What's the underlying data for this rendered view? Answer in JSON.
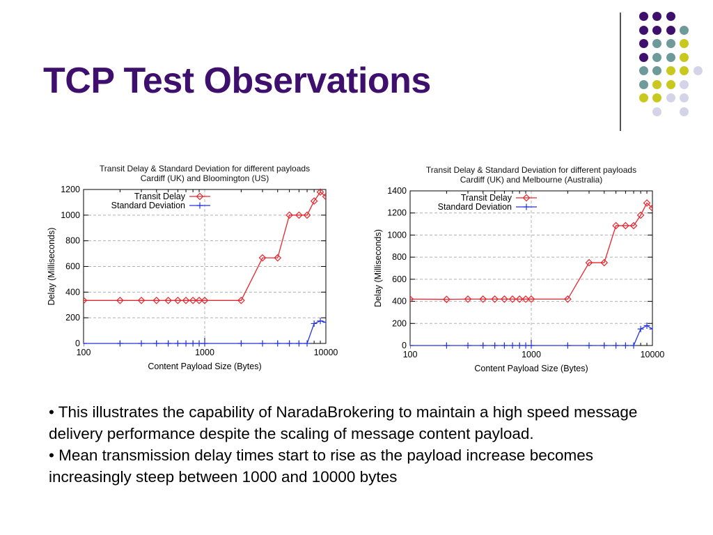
{
  "slide": {
    "title": "TCP Test Observations"
  },
  "decor": {
    "dot_colors": {
      "purple": "#3f0f6e",
      "teal": "#6f9a9a",
      "yellow": "#c8c81e",
      "lavender": "#d4d4e8"
    },
    "dot_grid": [
      [
        "",
        "purple",
        "purple",
        "purple",
        ""
      ],
      [
        "",
        "purple",
        "purple",
        "purple",
        "teal"
      ],
      [
        "",
        "purple",
        "teal",
        "teal",
        "yellow"
      ],
      [
        "",
        "purple",
        "teal",
        "teal",
        "yellow"
      ],
      [
        "",
        "teal",
        "teal",
        "yellow",
        "yellow",
        "lavender"
      ],
      [
        "",
        "teal",
        "yellow",
        "yellow",
        "lavender"
      ],
      [
        "",
        "yellow",
        "yellow",
        "lavender",
        "lavender"
      ],
      [
        "",
        "",
        "lavender",
        "",
        "lavender"
      ]
    ]
  },
  "bullets": [
    "• This illustrates the capability of NaradaBrokering to maintain a high speed message delivery performance despite the scaling of message content payload.",
    "• Mean transmission delay times start to rise as the payload increase becomes increasingly steep between 1000 and 10000 bytes"
  ],
  "chart_data": [
    {
      "type": "line",
      "title": "Transit Delay & Standard Deviation for different payloads",
      "subtitle": "Cardiff (UK) and Bloomington (US)",
      "xlabel": "Content Payload Size (Bytes)",
      "ylabel": "Delay (Milliseconds)",
      "x_scale": "log",
      "xlim": [
        100,
        10000
      ],
      "ylim": [
        0,
        1200
      ],
      "xticks": [
        100,
        1000,
        10000
      ],
      "xtick_labels": [
        "100",
        "1000",
        "10000"
      ],
      "yticks": [
        0,
        200,
        400,
        600,
        800,
        1000,
        1200
      ],
      "grid": true,
      "legend_position": "top-left",
      "x": [
        100,
        200,
        300,
        400,
        500,
        600,
        700,
        800,
        900,
        1000,
        2000,
        3000,
        4000,
        5000,
        6000,
        7000,
        8000,
        9000,
        10000
      ],
      "series": [
        {
          "name": "Transit Delay",
          "color": "#e8242c",
          "marker": "diamond",
          "values": [
            335,
            335,
            335,
            335,
            335,
            335,
            335,
            335,
            335,
            335,
            335,
            667,
            667,
            1000,
            1000,
            1000,
            1110,
            1180,
            1145
          ]
        },
        {
          "name": "Standard Deviation",
          "color": "#2233dd",
          "marker": "plus",
          "values": [
            0,
            0,
            0,
            0,
            0,
            0,
            0,
            0,
            0,
            0,
            0,
            0,
            0,
            0,
            0,
            0,
            155,
            175,
            165
          ]
        }
      ]
    },
    {
      "type": "line",
      "title": "Transit Delay & Standard Deviation for different payloads",
      "subtitle": "Cardiff (UK) and Melbourne (Australia)",
      "xlabel": "Content Payload Size (Bytes)",
      "ylabel": "Delay (Milliseconds)",
      "x_scale": "log",
      "xlim": [
        100,
        10000
      ],
      "ylim": [
        0,
        1400
      ],
      "xticks": [
        100,
        1000,
        10000
      ],
      "xtick_labels": [
        "100",
        "1000",
        "10000"
      ],
      "yticks": [
        0,
        200,
        400,
        600,
        800,
        1000,
        1200,
        1400
      ],
      "grid": true,
      "legend_position": "top-left",
      "x": [
        100,
        200,
        300,
        400,
        500,
        600,
        700,
        800,
        900,
        1000,
        2000,
        3000,
        4000,
        5000,
        6000,
        7000,
        8000,
        9000,
        10000
      ],
      "series": [
        {
          "name": "Transit Delay",
          "color": "#e8242c",
          "marker": "diamond",
          "values": [
            420,
            418,
            420,
            420,
            420,
            420,
            420,
            420,
            420,
            420,
            420,
            750,
            750,
            1085,
            1085,
            1085,
            1180,
            1290,
            1245
          ]
        },
        {
          "name": "Standard Deviation",
          "color": "#2233dd",
          "marker": "plus",
          "values": [
            0,
            0,
            0,
            0,
            0,
            0,
            0,
            0,
            0,
            0,
            0,
            0,
            0,
            0,
            0,
            0,
            150,
            180,
            150
          ]
        }
      ]
    }
  ]
}
